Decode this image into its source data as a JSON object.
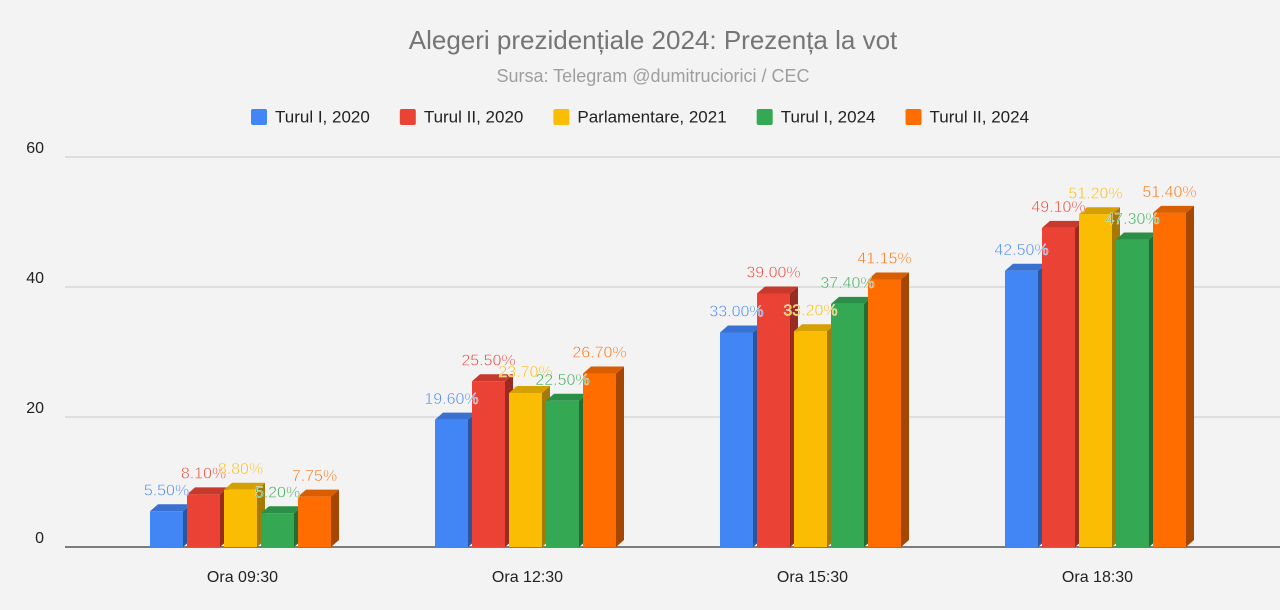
{
  "chart_data": {
    "type": "bar",
    "title": "Alegeri prezidențiale 2024: Prezența la vot",
    "subtitle": "Sursa: Telegram @dumitruciorici / CEC",
    "categories": [
      "Ora 09:30",
      "Ora 12:30",
      "Ora 15:30",
      "Ora 18:30"
    ],
    "series": [
      {
        "name": "Turul I, 2020",
        "color": "#4285f4",
        "values": [
          5.5,
          19.6,
          33.0,
          42.5
        ],
        "value_labels": [
          "5.50%",
          "19.60%",
          "33.00%",
          "42.50%"
        ]
      },
      {
        "name": "Turul II, 2020",
        "color": "#ea4335",
        "values": [
          8.1,
          25.5,
          39.0,
          49.1
        ],
        "value_labels": [
          "8.10%",
          "25.50%",
          "39.00%",
          "49.10%"
        ]
      },
      {
        "name": "Parlamentare, 2021",
        "color": "#fbbc04",
        "values": [
          8.8,
          23.7,
          33.2,
          51.2
        ],
        "value_labels": [
          "8.80%",
          "23.70%",
          "33.20%",
          "51.20%"
        ]
      },
      {
        "name": "Turul I, 2024",
        "color": "#34a853",
        "values": [
          5.2,
          22.5,
          37.4,
          47.3
        ],
        "value_labels": [
          "5.20%",
          "22.50%",
          "37.40%",
          "47.30%"
        ]
      },
      {
        "name": "Turul II, 2024",
        "color": "#ff6d01",
        "values": [
          7.75,
          26.7,
          41.15,
          51.4
        ],
        "value_labels": [
          "7.75%",
          "26.70%",
          "41.15%",
          "51.40%"
        ]
      }
    ],
    "ylim": [
      0,
      60
    ],
    "yticks": [
      0,
      20,
      40,
      60
    ],
    "grid": true
  }
}
